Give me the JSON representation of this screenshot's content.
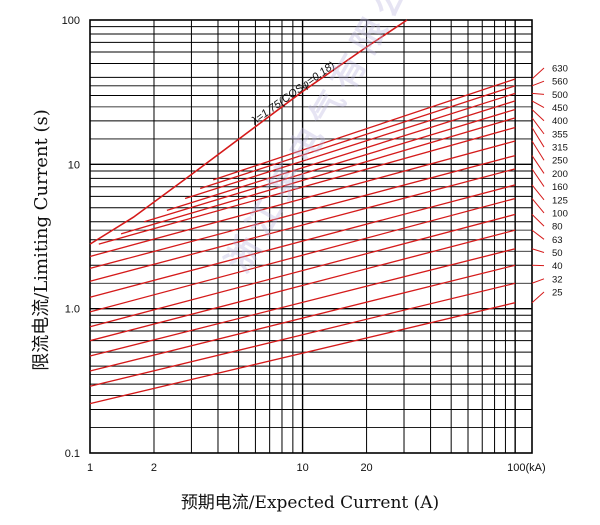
{
  "chart_data": {
    "type": "line",
    "title": "",
    "xlabel": "预期电流/Expected Current (A)",
    "ylabel": "限流电流/Limiting Current (s)",
    "xscale": "log",
    "yscale": "log",
    "xlim": [
      1,
      120
    ],
    "ylim": [
      0.1,
      100
    ],
    "x_ticks": [
      {
        "value": 1,
        "label": "1"
      },
      {
        "value": 2,
        "label": "2"
      },
      {
        "value": 10,
        "label": "10"
      },
      {
        "value": 20,
        "label": "20"
      },
      {
        "value": 100,
        "label": "100(kA)"
      }
    ],
    "y_ticks": [
      {
        "value": 0.1,
        "label": "0.1"
      },
      {
        "value": 1,
        "label": "1.0"
      },
      {
        "value": 10,
        "label": "10"
      },
      {
        "value": 100,
        "label": "100"
      }
    ],
    "grid": true,
    "envelope": {
      "name": "λ=1.75(COSφ=0.18)",
      "x": [
        1,
        1.6,
        3,
        10,
        20,
        31
      ],
      "y": [
        2.8,
        4.3,
        8.5,
        32,
        65,
        100
      ]
    },
    "series": [
      {
        "name": "25",
        "x": [
          1,
          100
        ],
        "y": [
          0.22,
          1.1
        ]
      },
      {
        "name": "32",
        "x": [
          1,
          100
        ],
        "y": [
          0.29,
          1.5
        ]
      },
      {
        "name": "40",
        "x": [
          1,
          100
        ],
        "y": [
          0.37,
          2.0
        ]
      },
      {
        "name": "50",
        "x": [
          1,
          100
        ],
        "y": [
          0.47,
          2.6
        ]
      },
      {
        "name": "63",
        "x": [
          1,
          100
        ],
        "y": [
          0.6,
          3.5
        ]
      },
      {
        "name": "80",
        "x": [
          1,
          100
        ],
        "y": [
          0.75,
          4.5
        ]
      },
      {
        "name": "100",
        "x": [
          1,
          100
        ],
        "y": [
          0.95,
          5.8
        ]
      },
      {
        "name": "125",
        "x": [
          1,
          100
        ],
        "y": [
          1.2,
          7.2
        ]
      },
      {
        "name": "160",
        "x": [
          1,
          100
        ],
        "y": [
          1.55,
          9.3
        ]
      },
      {
        "name": "200",
        "x": [
          1,
          100
        ],
        "y": [
          1.9,
          11.5
        ]
      },
      {
        "name": "250",
        "x": [
          1,
          100
        ],
        "y": [
          2.3,
          14.5
        ]
      },
      {
        "name": "315",
        "x": [
          1.1,
          100
        ],
        "y": [
          2.8,
          18
        ]
      },
      {
        "name": "355",
        "x": [
          1.4,
          100
        ],
        "y": [
          3.3,
          21
        ]
      },
      {
        "name": "400",
        "x": [
          1.8,
          100
        ],
        "y": [
          4.0,
          24
        ]
      },
      {
        "name": "450",
        "x": [
          2.3,
          100
        ],
        "y": [
          4.8,
          27.5
        ]
      },
      {
        "name": "500",
        "x": [
          2.8,
          100
        ],
        "y": [
          5.8,
          31
        ]
      },
      {
        "name": "560",
        "x": [
          3.3,
          100
        ],
        "y": [
          6.8,
          35
        ]
      },
      {
        "name": "630",
        "x": [
          3.8,
          100
        ],
        "y": [
          7.8,
          39
        ]
      }
    ],
    "line_color": "#d51a1a"
  },
  "watermark": "浙江某电气有限公司"
}
